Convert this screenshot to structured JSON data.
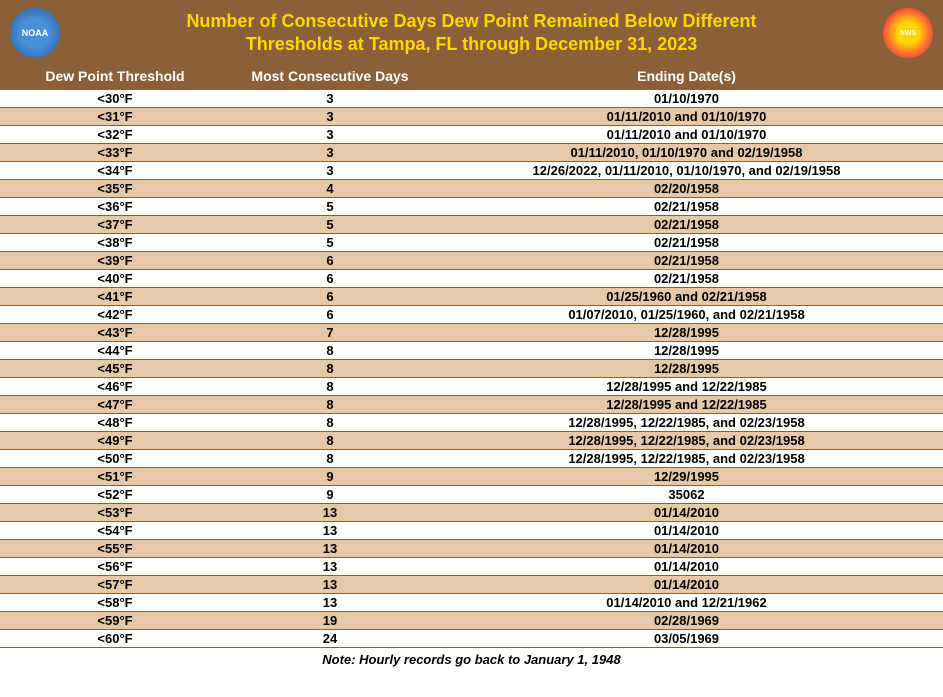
{
  "colors": {
    "header_bg": "#8b6039",
    "title_text": "#ffd700",
    "header_text": "#ffffff",
    "row_even_bg": "#ffffff",
    "row_odd_bg": "#e6c9a8",
    "row_text": "#000000",
    "border": "#8b6039"
  },
  "logos": {
    "left_label": "NOAA",
    "right_label": "NWS"
  },
  "title": {
    "line1": "Number of Consecutive Days Dew Point Remained Below Different",
    "line2": "Thresholds at Tampa, FL through December 31, 2023"
  },
  "columns": {
    "c1": "Dew Point Threshold",
    "c2": "Most Consecutive Days",
    "c3": "Ending Date(s)"
  },
  "rows": [
    {
      "threshold": "<30°F",
      "days": "3",
      "dates": "01/10/1970"
    },
    {
      "threshold": "<31°F",
      "days": "3",
      "dates": "01/11/2010 and 01/10/1970"
    },
    {
      "threshold": "<32°F",
      "days": "3",
      "dates": "01/11/2010 and 01/10/1970"
    },
    {
      "threshold": "<33°F",
      "days": "3",
      "dates": "01/11/2010, 01/10/1970 and 02/19/1958"
    },
    {
      "threshold": "<34°F",
      "days": "3",
      "dates": "12/26/2022, 01/11/2010, 01/10/1970, and 02/19/1958"
    },
    {
      "threshold": "<35°F",
      "days": "4",
      "dates": "02/20/1958"
    },
    {
      "threshold": "<36°F",
      "days": "5",
      "dates": "02/21/1958"
    },
    {
      "threshold": "<37°F",
      "days": "5",
      "dates": "02/21/1958"
    },
    {
      "threshold": "<38°F",
      "days": "5",
      "dates": "02/21/1958"
    },
    {
      "threshold": "<39°F",
      "days": "6",
      "dates": "02/21/1958"
    },
    {
      "threshold": "<40°F",
      "days": "6",
      "dates": "02/21/1958"
    },
    {
      "threshold": "<41°F",
      "days": "6",
      "dates": "01/25/1960 and 02/21/1958"
    },
    {
      "threshold": "<42°F",
      "days": "6",
      "dates": "01/07/2010, 01/25/1960, and 02/21/1958"
    },
    {
      "threshold": "<43°F",
      "days": "7",
      "dates": "12/28/1995"
    },
    {
      "threshold": "<44°F",
      "days": "8",
      "dates": "12/28/1995"
    },
    {
      "threshold": "<45°F",
      "days": "8",
      "dates": "12/28/1995"
    },
    {
      "threshold": "<46°F",
      "days": "8",
      "dates": "12/28/1995 and 12/22/1985"
    },
    {
      "threshold": "<47°F",
      "days": "8",
      "dates": "12/28/1995 and 12/22/1985"
    },
    {
      "threshold": "<48°F",
      "days": "8",
      "dates": "12/28/1995, 12/22/1985, and 02/23/1958"
    },
    {
      "threshold": "<49°F",
      "days": "8",
      "dates": "12/28/1995, 12/22/1985, and 02/23/1958"
    },
    {
      "threshold": "<50°F",
      "days": "8",
      "dates": "12/28/1995, 12/22/1985, and 02/23/1958"
    },
    {
      "threshold": "<51°F",
      "days": "9",
      "dates": "12/29/1995"
    },
    {
      "threshold": "<52°F",
      "days": "9",
      "dates": "35062"
    },
    {
      "threshold": "<53°F",
      "days": "13",
      "dates": "01/14/2010"
    },
    {
      "threshold": "<54°F",
      "days": "13",
      "dates": "01/14/2010"
    },
    {
      "threshold": "<55°F",
      "days": "13",
      "dates": "01/14/2010"
    },
    {
      "threshold": "<56°F",
      "days": "13",
      "dates": "01/14/2010"
    },
    {
      "threshold": "<57°F",
      "days": "13",
      "dates": "01/14/2010"
    },
    {
      "threshold": "<58°F",
      "days": "13",
      "dates": "01/14/2010 and 12/21/1962"
    },
    {
      "threshold": "<59°F",
      "days": "19",
      "dates": "02/28/1969"
    },
    {
      "threshold": "<60°F",
      "days": "24",
      "dates": "03/05/1969"
    }
  ],
  "footnote": "Note: Hourly records go back to January 1, 1948"
}
